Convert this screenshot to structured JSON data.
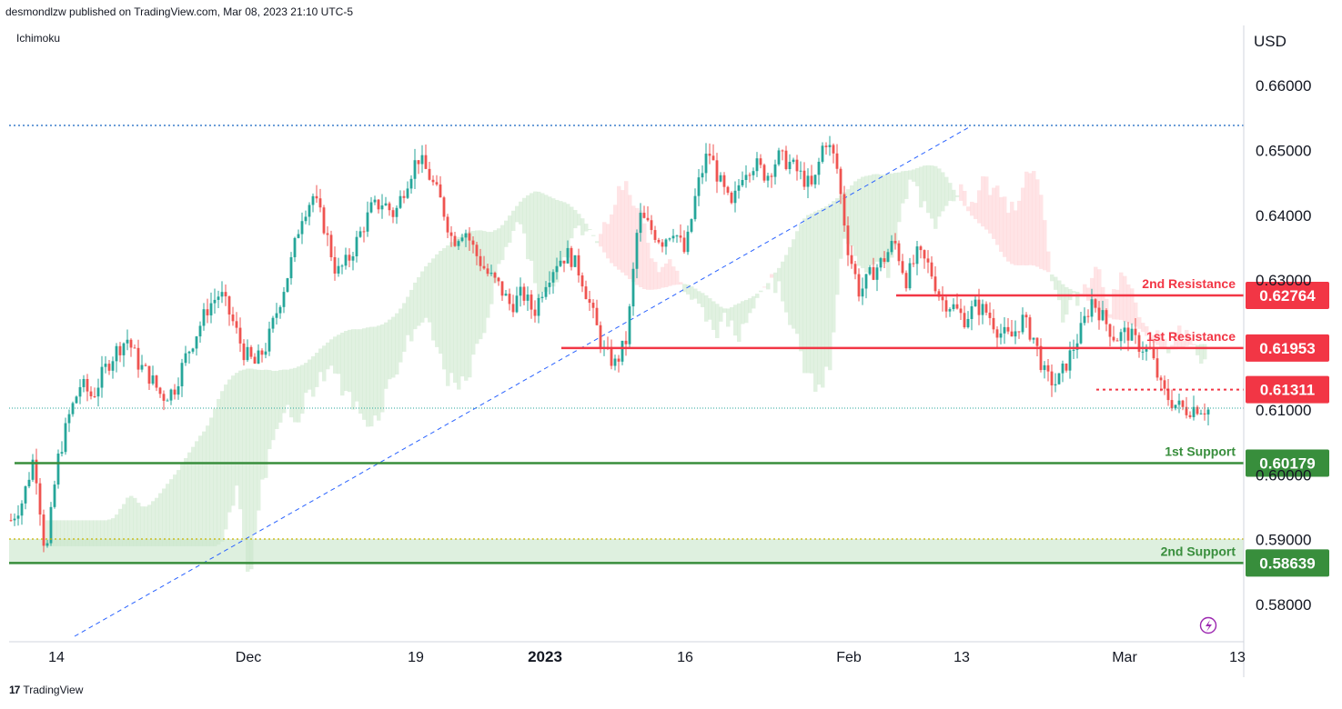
{
  "header": {
    "published": "desmondlzw published on TradingView.com, Mar 08, 2023 21:10 UTC-5"
  },
  "indicator": {
    "name": "Ichimoku"
  },
  "footer": {
    "brand": "TradingView",
    "logo_glyph": "17"
  },
  "colors": {
    "up": "#26a69a",
    "down": "#ef5350",
    "resistance": "#f23645",
    "support": "#388e3c",
    "cloud_green": "#c8e6c9",
    "cloud_red": "#ffcdd2",
    "trend": "#2962ff"
  },
  "chart_data": {
    "type": "candlestick",
    "currency": "USD",
    "ylim": [
      0.574,
      0.6675
    ],
    "y_ticks": [
      "0.66000",
      "0.65000",
      "0.64000",
      "0.63000",
      "0.61000",
      "0.60000",
      "0.59000",
      "0.58000"
    ],
    "x_ticks": [
      {
        "label": "14",
        "bold": false
      },
      {
        "label": "Dec",
        "bold": false
      },
      {
        "label": "19",
        "bold": false
      },
      {
        "label": "2023",
        "bold": true
      },
      {
        "label": "16",
        "bold": false
      },
      {
        "label": "Feb",
        "bold": false
      },
      {
        "label": "13",
        "bold": false
      },
      {
        "label": "Mar",
        "bold": false
      },
      {
        "label": "13",
        "bold": false
      }
    ],
    "levels": [
      {
        "name": "2nd Resistance",
        "value": "0.62764",
        "kind": "resistance"
      },
      {
        "name": "1st Resistance",
        "value": "0.61953",
        "kind": "resistance"
      },
      {
        "name": "",
        "value": "0.61311",
        "kind": "resistance-dotted"
      },
      {
        "name": "1st Support",
        "value": "0.60179",
        "kind": "support"
      },
      {
        "name": "2nd Support",
        "value": "0.58639",
        "kind": "support"
      }
    ],
    "last_price": 0.61,
    "price_path": [
      0.593,
      0.596,
      0.603,
      0.587,
      0.602,
      0.609,
      0.614,
      0.612,
      0.616,
      0.619,
      0.621,
      0.617,
      0.615,
      0.612,
      0.613,
      0.618,
      0.622,
      0.626,
      0.628,
      0.624,
      0.619,
      0.617,
      0.62,
      0.626,
      0.632,
      0.64,
      0.643,
      0.638,
      0.631,
      0.633,
      0.637,
      0.641,
      0.642,
      0.64,
      0.645,
      0.649,
      0.646,
      0.642,
      0.636,
      0.638,
      0.634,
      0.631,
      0.629,
      0.626,
      0.628,
      0.625,
      0.63,
      0.633,
      0.634,
      0.631,
      0.625,
      0.619,
      0.617,
      0.621,
      0.64,
      0.638,
      0.636,
      0.638,
      0.634,
      0.644,
      0.65,
      0.645,
      0.641,
      0.647,
      0.648,
      0.646,
      0.649,
      0.648,
      0.646,
      0.644,
      0.652,
      0.648,
      0.635,
      0.628,
      0.631,
      0.633,
      0.636,
      0.63,
      0.634,
      0.632,
      0.627,
      0.626,
      0.624,
      0.626,
      0.625,
      0.622,
      0.621,
      0.624,
      0.621,
      0.615,
      0.614,
      0.618,
      0.622,
      0.627,
      0.624,
      0.621,
      0.622,
      0.62,
      0.619,
      0.613,
      0.611,
      0.61,
      0.6105,
      0.61
    ]
  }
}
